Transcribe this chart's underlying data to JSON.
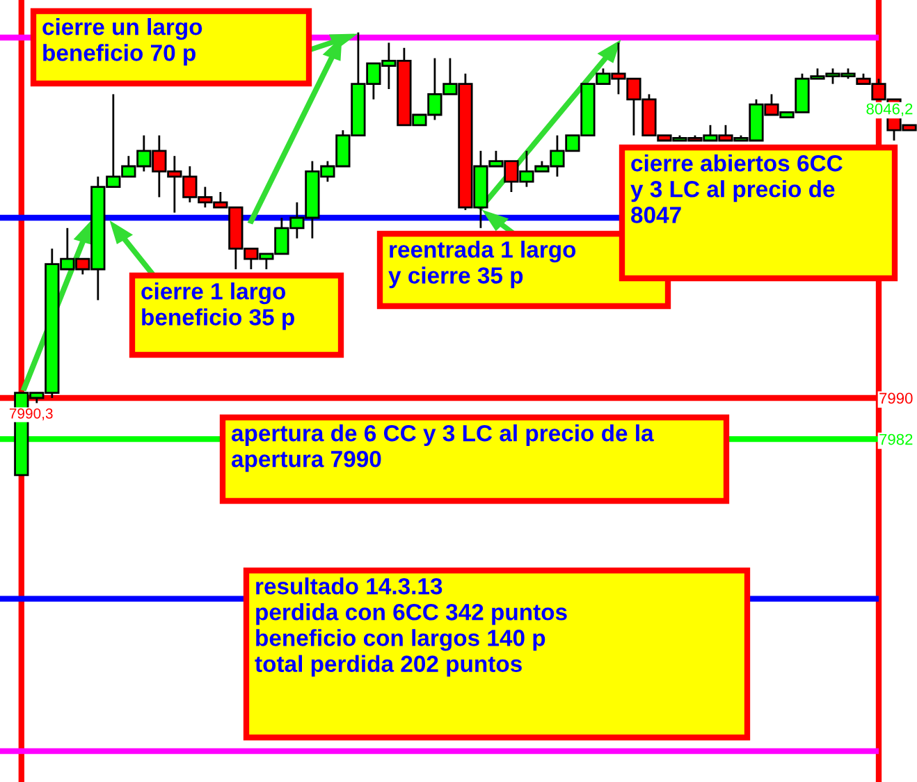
{
  "chart_data": {
    "type": "candlestick",
    "categories": [
      null,
      null,
      null,
      null,
      null,
      null,
      null,
      null,
      null,
      null,
      null,
      null,
      null,
      null,
      null,
      null,
      null,
      null,
      null,
      null,
      null,
      null,
      null,
      null,
      null,
      null,
      null,
      null,
      null,
      null,
      null,
      null,
      null,
      null,
      null,
      null,
      null,
      null,
      null,
      null,
      null,
      null,
      null,
      null,
      null,
      null,
      null,
      null,
      null,
      null,
      null,
      null,
      null,
      null,
      null,
      null,
      null,
      null,
      null
    ],
    "ohlc": [
      [
        7975,
        7991,
        7975,
        7991
      ],
      [
        7990,
        7991,
        7989,
        7991
      ],
      [
        7991,
        8019,
        7990,
        8016
      ],
      [
        8015,
        8023,
        8015,
        8017
      ],
      [
        8017,
        8017,
        8014,
        8015
      ],
      [
        8015,
        8033,
        8009,
        8031
      ],
      [
        8031,
        8049,
        8031,
        8033
      ],
      [
        8033,
        8037,
        8033,
        8035
      ],
      [
        8035,
        8041,
        8034,
        8038
      ],
      [
        8038,
        8041,
        8029,
        8034
      ],
      [
        8034,
        8037,
        8026,
        8033
      ],
      [
        8033,
        8035,
        8028,
        8029
      ],
      [
        8029,
        8031,
        8027,
        8028
      ],
      [
        8028,
        8030,
        8027,
        8027
      ],
      [
        8027,
        8027,
        8015,
        8019
      ],
      [
        8019,
        8019,
        8015,
        8017
      ],
      [
        8017,
        8018,
        8015,
        8018
      ],
      [
        8018,
        8025,
        8018,
        8023
      ],
      [
        8023,
        8028,
        8021,
        8025
      ],
      [
        8025,
        8036,
        8021,
        8034
      ],
      [
        8033,
        8036,
        8032,
        8035
      ],
      [
        8035,
        8042,
        8035,
        8041
      ],
      [
        8041,
        8061,
        8041,
        8051
      ],
      [
        8051,
        8055,
        8048,
        8055
      ],
      [
        8054.5,
        8059,
        8050,
        8055.5
      ],
      [
        8055.5,
        8058,
        8043,
        8043
      ],
      [
        8043,
        8045,
        8043,
        8045
      ],
      [
        8045,
        8056,
        8044,
        8049
      ],
      [
        8049,
        8056,
        8049,
        8051
      ],
      [
        8051,
        8053,
        8026.5,
        8027
      ],
      [
        8027,
        8038,
        8023,
        8035
      ],
      [
        8035,
        8038,
        8035,
        8036
      ],
      [
        8036,
        8036,
        8030,
        8032
      ],
      [
        8032,
        8038,
        8031,
        8034
      ],
      [
        8034,
        8036,
        8034,
        8035
      ],
      [
        8035,
        8041,
        8033,
        8038
      ],
      [
        8038,
        8041,
        8038,
        8041
      ],
      [
        8041,
        8051,
        8041,
        8051
      ],
      [
        8051,
        8054,
        8051,
        8053
      ],
      [
        8053,
        8059,
        8049,
        8052
      ],
      [
        8052,
        8052,
        8041,
        8048
      ],
      [
        8048,
        8049,
        8041,
        8041
      ],
      [
        8041,
        8041,
        8040,
        8040
      ],
      [
        8040,
        8041,
        8040,
        8040.5
      ],
      [
        8040.5,
        8041,
        8040,
        8040
      ],
      [
        8040,
        8043,
        8040,
        8041
      ],
      [
        8041,
        8043,
        8040,
        8040
      ],
      [
        8040,
        8041,
        8040,
        8040.5
      ],
      [
        8040,
        8048,
        8040,
        8047
      ],
      [
        8047,
        8049,
        8045,
        8045
      ],
      [
        8044.5,
        8045.5,
        8044.5,
        8045.5
      ],
      [
        8045.5,
        8053,
        8045.5,
        8052
      ],
      [
        8052,
        8054,
        8052,
        8052.5
      ],
      [
        8052.5,
        8054,
        8051,
        8053
      ],
      [
        8052.5,
        8054,
        8052,
        8053
      ],
      [
        8052,
        8053,
        8051,
        8051
      ],
      [
        8051,
        8052,
        8048,
        8048
      ],
      [
        8048,
        8048,
        8040,
        8042
      ],
      [
        8043,
        8043,
        8042,
        8042
      ]
    ],
    "colors": [
      "#00ff00",
      "#00ff00",
      "#00ff00",
      "#00ff00",
      "#ff0000",
      "#00ff00",
      "#00ff00",
      "#00ff00",
      "#00ff00",
      "#ff0000",
      "#ff0000",
      "#ff0000",
      "#ff0000",
      "#ff0000",
      "#ff0000",
      "#ff0000",
      "#00ff00",
      "#00ff00",
      "#00ff00",
      "#00ff00",
      "#00ff00",
      "#00ff00",
      "#00ff00",
      "#00ff00",
      "#00ff00",
      "#ff0000",
      "#00ff00",
      "#00ff00",
      "#00ff00",
      "#ff0000",
      "#00ff00",
      "#00ff00",
      "#ff0000",
      "#00ff00",
      "#00ff00",
      "#00ff00",
      "#00ff00",
      "#00ff00",
      "#00ff00",
      "#ff0000",
      "#ff0000",
      "#ff0000",
      "#ff0000",
      "#00ff00",
      "#ff0000",
      "#00ff00",
      "#ff0000",
      "#00ff00",
      "#00ff00",
      "#ff0000",
      "#00ff00",
      "#00ff00",
      "#00ff00",
      "#00ff00",
      "#00ff00",
      "#ff0000",
      "#ff0000",
      "#ff0000",
      "#ff0000"
    ],
    "ylim": [
      7915.4,
      8067.3
    ],
    "yticks": [
      7982,
      7990,
      {
        "value": 8046.2,
        "label": "8046,2"
      }
    ],
    "tick_labels": "y",
    "grid": false,
    "ref_lines": [
      {
        "axis": "y",
        "value": 8060,
        "color": "#ff00ff"
      },
      {
        "axis": "y",
        "value": 8025,
        "color": "#0000ff"
      },
      {
        "axis": "y",
        "value": 7990,
        "color": "#ff0000"
      },
      {
        "axis": "y",
        "value": 7982,
        "color": "#00ff00"
      },
      {
        "axis": "y",
        "value": 7951,
        "color": "#0000ff"
      },
      {
        "axis": "y",
        "value": 7921.4,
        "color": "#ff00ff"
      }
    ],
    "annotations": [
      "cierre un largo\nbeneficio 70 p",
      "cierre 1 largo\nbeneficio 35 p",
      "reentrada 1 largo\ny cierre 35 p",
      "cierre abiertos 6CC\ny 3 LC al precio de\n8047",
      "apertura de 6 CC y 3 LC al precio de la\napertura 7990",
      "resultado 14.3.13\nperdida con 6CC 342 puntos\nbeneficio con largos 140 p\ntotal perdida 202 puntos",
      {
        "text": "7990,3",
        "y": 7990.3
      }
    ]
  }
}
